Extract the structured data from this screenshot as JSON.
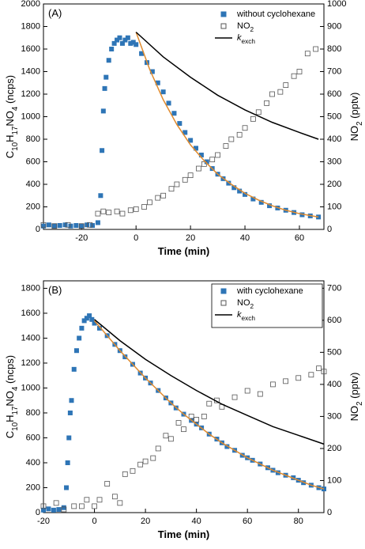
{
  "chart_data": [
    {
      "type": "scatter",
      "annotation": "(A)",
      "xlabel": "Time (min)",
      "ylabel": "C10H17NO4 (ncps)",
      "y2label": "NO2 (pptv)",
      "xlim": [
        -34,
        69
      ],
      "xticks": [
        -20,
        0,
        20,
        40,
        60
      ],
      "ylim": [
        0,
        2000
      ],
      "yticks": [
        0,
        200,
        400,
        600,
        800,
        1000,
        1200,
        1400,
        1600,
        1800,
        2000
      ],
      "y2lim": [
        0,
        1000
      ],
      "y2ticks": [
        0,
        100,
        200,
        300,
        400,
        500,
        600,
        700,
        800,
        900,
        1000
      ],
      "legend": "upper right",
      "legend_frame": false,
      "series": [
        {
          "name": "without cyclohexane",
          "color": "#2e75b6",
          "marker": "filled-square",
          "axis": "y",
          "x": [
            -34,
            -32,
            -30,
            -28,
            -26,
            -24,
            -22,
            -20,
            -18,
            -16,
            -14,
            -13,
            -12.5,
            -12,
            -11.5,
            -11,
            -10,
            -9,
            -8,
            -7,
            -6,
            -5,
            -4,
            -3,
            -2,
            -1,
            0,
            2,
            4,
            6,
            8,
            10,
            12,
            14,
            16,
            18,
            20,
            22,
            24,
            26,
            28,
            30,
            32,
            34,
            36,
            38,
            40,
            43,
            46,
            49,
            52,
            55,
            58,
            61,
            64,
            67
          ],
          "values": [
            30,
            40,
            30,
            35,
            40,
            30,
            35,
            30,
            40,
            35,
            60,
            300,
            700,
            1050,
            1250,
            1350,
            1500,
            1600,
            1650,
            1680,
            1700,
            1650,
            1680,
            1700,
            1650,
            1660,
            1640,
            1560,
            1480,
            1400,
            1300,
            1220,
            1120,
            1030,
            940,
            860,
            790,
            720,
            660,
            600,
            540,
            490,
            450,
            410,
            370,
            340,
            310,
            270,
            240,
            210,
            190,
            170,
            150,
            130,
            120,
            110
          ]
        },
        {
          "name": "NO2",
          "color": "#555555",
          "marker": "open-square",
          "axis": "y2",
          "x": [
            -34,
            -30,
            -25,
            -20,
            -17,
            -14,
            -12,
            -10,
            -7,
            -5,
            -2,
            0,
            3,
            5,
            8,
            10,
            13,
            15,
            18,
            20,
            23,
            25,
            28,
            30,
            33,
            35,
            38,
            40,
            43,
            45,
            48,
            50,
            53,
            55,
            58,
            60,
            63,
            66
          ],
          "values": [
            20,
            15,
            20,
            15,
            20,
            70,
            80,
            75,
            80,
            70,
            85,
            90,
            100,
            120,
            140,
            150,
            180,
            200,
            220,
            240,
            270,
            290,
            310,
            330,
            370,
            400,
            420,
            450,
            490,
            520,
            560,
            600,
            610,
            640,
            680,
            700,
            780,
            800
          ]
        },
        {
          "color": "#e08a2c",
          "marker": "line",
          "axis": "y",
          "x": [
            0,
            5,
            10,
            15,
            20,
            25,
            30,
            35,
            40,
            45,
            50,
            55,
            60,
            67
          ],
          "values": [
            1750,
            1420,
            1150,
            930,
            750,
            610,
            490,
            400,
            320,
            260,
            210,
            170,
            140,
            110
          ]
        },
        {
          "name": "kexch",
          "color": "#000000",
          "marker": "line",
          "axis": "y",
          "x": [
            0,
            10,
            20,
            30,
            40,
            50,
            60,
            67
          ],
          "values": [
            1750,
            1530,
            1350,
            1190,
            1060,
            950,
            860,
            800
          ]
        }
      ]
    },
    {
      "type": "scatter",
      "annotation": "(B)",
      "xlabel": "Time (min)",
      "ylabel": "C10H17NO4 (ncps)",
      "y2label": "NO2 (pptv)",
      "xlim": [
        -20,
        90
      ],
      "xticks": [
        -20,
        0,
        20,
        40,
        60,
        80
      ],
      "ylim": [
        0,
        1860
      ],
      "yticks": [
        0,
        200,
        400,
        600,
        800,
        1000,
        1200,
        1400,
        1600,
        1800
      ],
      "y2lim": [
        0,
        723
      ],
      "y2ticks": [
        0,
        100,
        200,
        300,
        400,
        500,
        600,
        700
      ],
      "legend": "upper right",
      "legend_frame": true,
      "series": [
        {
          "name": "with cyclohexane",
          "color": "#2e75b6",
          "marker": "filled-square",
          "axis": "y",
          "x": [
            -20,
            -18,
            -16,
            -14,
            -12,
            -11,
            -10.5,
            -10,
            -9.5,
            -9,
            -8,
            -7,
            -6,
            -5,
            -4,
            -3,
            -2,
            -1,
            0,
            2,
            5,
            8,
            10,
            12,
            15,
            18,
            20,
            22,
            25,
            28,
            30,
            32,
            35,
            38,
            40,
            42,
            45,
            48,
            50,
            52,
            55,
            58,
            60,
            62,
            65,
            68,
            70,
            72,
            75,
            78,
            80,
            82,
            85,
            88,
            90
          ],
          "values": [
            20,
            30,
            20,
            25,
            40,
            200,
            400,
            600,
            800,
            900,
            1150,
            1300,
            1400,
            1480,
            1540,
            1560,
            1580,
            1550,
            1520,
            1480,
            1420,
            1350,
            1300,
            1250,
            1190,
            1120,
            1080,
            1040,
            980,
            920,
            880,
            840,
            790,
            740,
            710,
            680,
            630,
            590,
            560,
            530,
            500,
            460,
            440,
            420,
            390,
            360,
            340,
            320,
            300,
            280,
            260,
            240,
            220,
            200,
            190
          ]
        },
        {
          "name": "NO2",
          "color": "#555555",
          "marker": "open-square",
          "axis": "y2",
          "x": [
            -20,
            -15,
            -12,
            -8,
            -5,
            -3,
            0,
            2,
            5,
            8,
            10,
            12,
            15,
            18,
            20,
            23,
            25,
            28,
            30,
            33,
            35,
            38,
            40,
            43,
            45,
            48,
            50,
            55,
            60,
            65,
            70,
            75,
            80,
            85,
            88,
            90
          ],
          "values": [
            20,
            30,
            10,
            20,
            20,
            40,
            20,
            40,
            90,
            50,
            30,
            120,
            130,
            150,
            160,
            170,
            200,
            240,
            230,
            280,
            260,
            300,
            290,
            300,
            340,
            350,
            330,
            360,
            380,
            370,
            400,
            410,
            420,
            430,
            450,
            440
          ]
        },
        {
          "color": "#e08a2c",
          "marker": "line",
          "axis": "y",
          "x": [
            0,
            5,
            10,
            15,
            20,
            25,
            30,
            35,
            40,
            45,
            50,
            55,
            60,
            65,
            70,
            75,
            80,
            85,
            90
          ],
          "values": [
            1540,
            1420,
            1300,
            1190,
            1080,
            980,
            880,
            790,
            710,
            630,
            560,
            500,
            440,
            390,
            340,
            300,
            260,
            220,
            190
          ]
        },
        {
          "name": "kexch",
          "color": "#000000",
          "marker": "line",
          "axis": "y",
          "x": [
            0,
            10,
            20,
            30,
            40,
            50,
            60,
            70,
            80,
            90
          ],
          "values": [
            1550,
            1380,
            1230,
            1100,
            980,
            870,
            780,
            690,
            620,
            550
          ]
        }
      ]
    }
  ]
}
